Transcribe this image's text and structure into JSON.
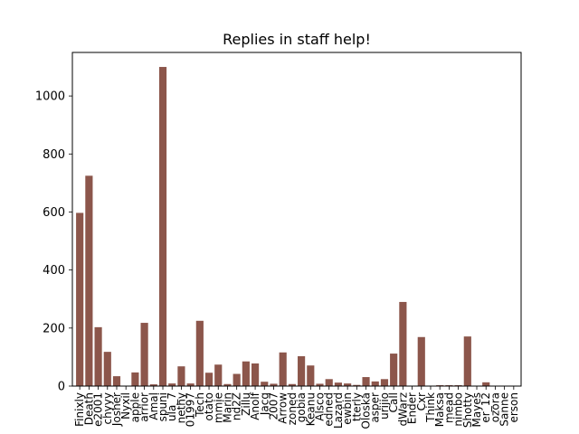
{
  "chart_data": {
    "type": "bar",
    "title": "Replies in staff help!",
    "xlabel": "",
    "ylabel": "",
    "ylim": [
      0,
      1150
    ],
    "yticks": [
      0,
      200,
      400,
      600,
      800,
      1000
    ],
    "ytick_labels": [
      "0",
      "200",
      "400",
      "600",
      "800",
      "1000"
    ],
    "grid": false,
    "legend": "none",
    "bar_color": "#8c564b",
    "categories": [
      "Finixly",
      "Death",
      "e2001",
      "chyyy",
      "Josher",
      "Nyxil",
      "apple",
      "arrior",
      "Amal",
      "spuni",
      "ula_7",
      "nethy",
      "01997",
      "Tech",
      "otato",
      "mmie",
      "Marin",
      "nd2Z",
      "Zillu",
      "Anolf",
      "Jacq",
      "2007",
      "Arrow",
      "zoned",
      "gobia",
      "Keanu",
      "Alsco",
      "edned",
      "Lazard",
      "ewbin",
      "tterly",
      "Oloska",
      "asper",
      "urijio",
      "Call",
      "dWarz",
      "Ender",
      "Cxr",
      "Think",
      "Maksa",
      "mead",
      "nimbo",
      "Shotty",
      "Mayes",
      "er_12",
      "ozora",
      "Sanne",
      "erson"
    ],
    "values": [
      597,
      725,
      203,
      118,
      34,
      0,
      47,
      218,
      6,
      1100,
      9,
      68,
      9,
      225,
      46,
      74,
      7,
      42,
      85,
      78,
      15,
      8,
      116,
      7,
      103,
      71,
      8,
      24,
      12,
      9,
      4,
      31,
      16,
      24,
      112,
      290,
      0,
      169,
      0,
      3,
      3,
      3,
      171,
      0,
      13,
      0,
      0,
      0
    ]
  }
}
